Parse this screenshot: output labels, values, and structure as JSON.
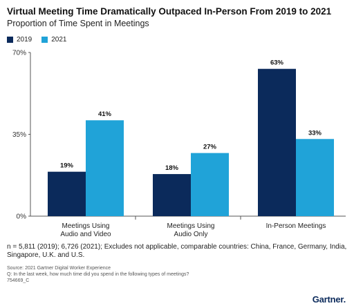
{
  "header": {
    "title": "Virtual Meeting Time Dramatically Outpaced In-Person From 2019 to 2021",
    "subtitle": "Proportion of Time Spent in Meetings"
  },
  "colors": {
    "series_2019": "#0b2a5b",
    "series_2021": "#20a3d8",
    "axis": "#555555",
    "gridline": "#d9d9d9"
  },
  "chart_data": {
    "type": "bar",
    "categories": [
      [
        "Meetings Using",
        "Audio and Video"
      ],
      [
        "Meetings Using",
        "Audio Only"
      ],
      [
        "In-Person Meetings"
      ]
    ],
    "series": [
      {
        "name": "2019",
        "values": [
          19,
          18,
          63
        ],
        "labels": [
          "19%",
          "18%",
          "63%"
        ]
      },
      {
        "name": "2021",
        "values": [
          41,
          27,
          33
        ],
        "labels": [
          "41%",
          "27%",
          "33%"
        ]
      }
    ],
    "ylim": [
      0,
      70
    ],
    "yticks": [
      0,
      35,
      70
    ],
    "ytick_labels": [
      "0%",
      "35%",
      "70%"
    ],
    "legend": "top-left",
    "grid": false
  },
  "notes": {
    "sample": "n = 5,811 (2019); 6,726 (2021); Excludes not applicable, comparable countries: China, France, Germany, India, Singapore, U.K. and U.S.",
    "source": "Source: 2021 Gartner Digital Worker Experience",
    "question": "Q: In the last week, how much time did you spend in the following types of meetings?",
    "id": "754669_C"
  },
  "brand": "Gartner."
}
